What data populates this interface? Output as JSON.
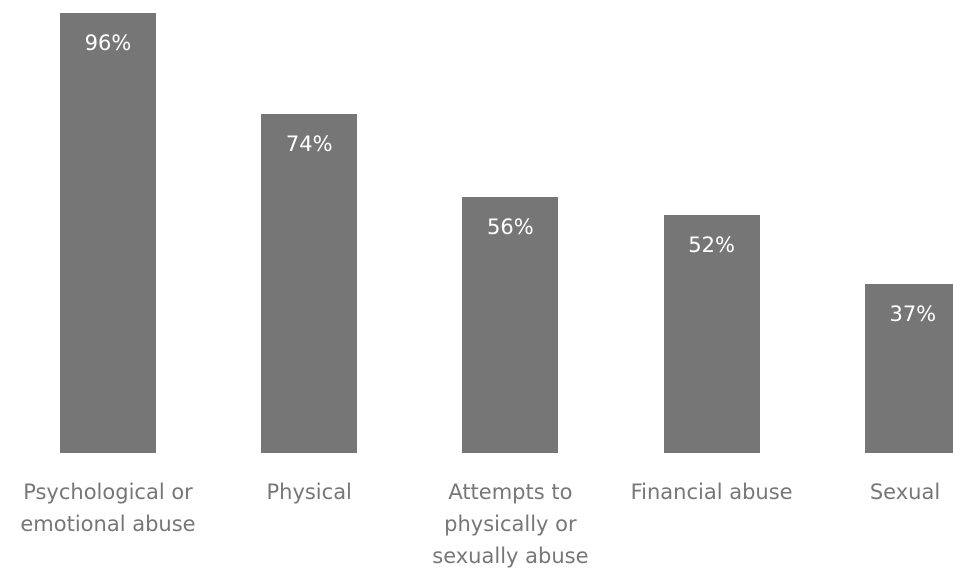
{
  "chart_data": {
    "type": "bar",
    "categories": [
      "Psychological or emotional abuse",
      "Physical",
      "Attempts to physically or sexually abuse",
      "Financial abuse",
      "Sexual"
    ],
    "values": [
      96,
      74,
      56,
      52,
      37
    ],
    "value_labels": [
      "96%",
      "74%",
      "56%",
      "52%",
      "37%"
    ],
    "color": "#767676",
    "ylim": [
      0,
      100
    ]
  }
}
